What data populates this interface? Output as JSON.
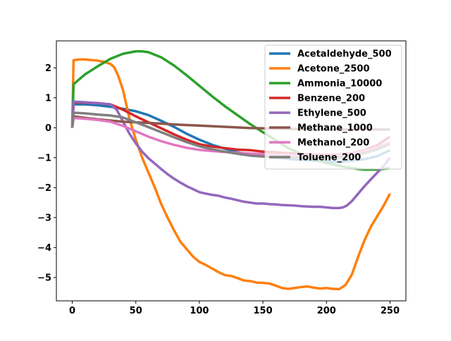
{
  "chart_data": {
    "type": "line",
    "title": "",
    "xlabel": "",
    "ylabel": "",
    "xlim": [
      -12.5,
      262.5
    ],
    "ylim": [
      -5.78,
      2.9
    ],
    "x_ticks": [
      0,
      50,
      100,
      150,
      200,
      250
    ],
    "x_tick_labels": [
      "0",
      "50",
      "100",
      "150",
      "200",
      "250"
    ],
    "y_ticks": [
      2,
      1,
      0,
      -1,
      -2,
      -3,
      -4,
      -5
    ],
    "y_tick_labels": [
      "2",
      "1",
      "0",
      "−1",
      "−2",
      "−3",
      "−4",
      "−5"
    ],
    "grid": false,
    "legend_position": "upper-right",
    "series": [
      {
        "name": "Acetaldehyde_500",
        "color": "#1f77b4",
        "points": [
          [
            0,
            0
          ],
          [
            1,
            0.78
          ],
          [
            10,
            0.78
          ],
          [
            20,
            0.75
          ],
          [
            30,
            0.7
          ],
          [
            40,
            0.63
          ],
          [
            50,
            0.55
          ],
          [
            60,
            0.42
          ],
          [
            70,
            0.23
          ],
          [
            80,
            0.03
          ],
          [
            90,
            -0.2
          ],
          [
            100,
            -0.4
          ],
          [
            110,
            -0.57
          ],
          [
            120,
            -0.7
          ],
          [
            130,
            -0.82
          ],
          [
            140,
            -0.9
          ],
          [
            150,
            -0.95
          ],
          [
            160,
            -1.0
          ],
          [
            170,
            -1.04
          ],
          [
            180,
            -1.07
          ],
          [
            190,
            -1.1
          ],
          [
            200,
            -1.12
          ],
          [
            210,
            -1.15
          ],
          [
            220,
            -1.1
          ],
          [
            230,
            -1.05
          ],
          [
            240,
            -0.95
          ],
          [
            250,
            -0.75
          ]
        ]
      },
      {
        "name": "Acetone_2500",
        "color": "#ff7f0e",
        "points": [
          [
            0,
            0
          ],
          [
            1,
            2.25
          ],
          [
            5,
            2.28
          ],
          [
            10,
            2.28
          ],
          [
            20,
            2.24
          ],
          [
            25,
            2.2
          ],
          [
            30,
            2.13
          ],
          [
            33,
            2.02
          ],
          [
            36,
            1.75
          ],
          [
            40,
            1.25
          ],
          [
            45,
            0.3
          ],
          [
            50,
            -0.4
          ],
          [
            55,
            -1.0
          ],
          [
            60,
            -1.5
          ],
          [
            65,
            -2.0
          ],
          [
            70,
            -2.55
          ],
          [
            75,
            -3.0
          ],
          [
            80,
            -3.42
          ],
          [
            85,
            -3.8
          ],
          [
            90,
            -4.05
          ],
          [
            95,
            -4.3
          ],
          [
            100,
            -4.48
          ],
          [
            105,
            -4.58
          ],
          [
            110,
            -4.7
          ],
          [
            115,
            -4.82
          ],
          [
            120,
            -4.92
          ],
          [
            125,
            -4.95
          ],
          [
            130,
            -5.02
          ],
          [
            135,
            -5.1
          ],
          [
            140,
            -5.12
          ],
          [
            145,
            -5.17
          ],
          [
            150,
            -5.18
          ],
          [
            155,
            -5.2
          ],
          [
            160,
            -5.27
          ],
          [
            165,
            -5.35
          ],
          [
            170,
            -5.38
          ],
          [
            175,
            -5.35
          ],
          [
            180,
            -5.32
          ],
          [
            185,
            -5.3
          ],
          [
            190,
            -5.34
          ],
          [
            195,
            -5.37
          ],
          [
            200,
            -5.35
          ],
          [
            205,
            -5.38
          ],
          [
            210,
            -5.39
          ],
          [
            215,
            -5.25
          ],
          [
            220,
            -4.9
          ],
          [
            225,
            -4.3
          ],
          [
            230,
            -3.75
          ],
          [
            235,
            -3.3
          ],
          [
            240,
            -2.95
          ],
          [
            245,
            -2.6
          ],
          [
            250,
            -2.2
          ]
        ]
      },
      {
        "name": "Ammonia_10000",
        "color": "#2ca02c",
        "points": [
          [
            0,
            0
          ],
          [
            1,
            1.45
          ],
          [
            5,
            1.6
          ],
          [
            10,
            1.78
          ],
          [
            20,
            2.05
          ],
          [
            30,
            2.3
          ],
          [
            40,
            2.47
          ],
          [
            50,
            2.55
          ],
          [
            55,
            2.55
          ],
          [
            60,
            2.52
          ],
          [
            70,
            2.35
          ],
          [
            80,
            2.08
          ],
          [
            90,
            1.75
          ],
          [
            100,
            1.4
          ],
          [
            110,
            1.05
          ],
          [
            120,
            0.72
          ],
          [
            130,
            0.42
          ],
          [
            140,
            0.12
          ],
          [
            150,
            -0.15
          ],
          [
            160,
            -0.42
          ],
          [
            170,
            -0.68
          ],
          [
            180,
            -0.88
          ],
          [
            190,
            -1.05
          ],
          [
            200,
            -1.18
          ],
          [
            210,
            -1.27
          ],
          [
            220,
            -1.35
          ],
          [
            230,
            -1.4
          ],
          [
            240,
            -1.4
          ],
          [
            250,
            -1.35
          ]
        ]
      },
      {
        "name": "Benzene_200",
        "color": "#d62728",
        "points": [
          [
            0,
            0
          ],
          [
            1,
            0.85
          ],
          [
            10,
            0.84
          ],
          [
            20,
            0.82
          ],
          [
            30,
            0.78
          ],
          [
            40,
            0.6
          ],
          [
            50,
            0.38
          ],
          [
            60,
            0.18
          ],
          [
            70,
            -0.02
          ],
          [
            80,
            -0.22
          ],
          [
            90,
            -0.4
          ],
          [
            100,
            -0.55
          ],
          [
            110,
            -0.63
          ],
          [
            120,
            -0.68
          ],
          [
            130,
            -0.73
          ],
          [
            140,
            -0.75
          ],
          [
            150,
            -0.8
          ],
          [
            160,
            -0.82
          ],
          [
            170,
            -0.85
          ],
          [
            180,
            -0.88
          ],
          [
            190,
            -0.9
          ],
          [
            200,
            -0.9
          ],
          [
            210,
            -0.9
          ],
          [
            220,
            -0.85
          ],
          [
            230,
            -0.75
          ],
          [
            240,
            -0.58
          ],
          [
            250,
            -0.3
          ]
        ]
      },
      {
        "name": "Ethylene_500",
        "color": "#9467bd",
        "points": [
          [
            0,
            0
          ],
          [
            1,
            0.87
          ],
          [
            10,
            0.85
          ],
          [
            20,
            0.82
          ],
          [
            30,
            0.78
          ],
          [
            35,
            0.6
          ],
          [
            40,
            0.2
          ],
          [
            45,
            -0.2
          ],
          [
            50,
            -0.52
          ],
          [
            55,
            -0.8
          ],
          [
            60,
            -1.02
          ],
          [
            65,
            -1.2
          ],
          [
            70,
            -1.38
          ],
          [
            75,
            -1.55
          ],
          [
            80,
            -1.7
          ],
          [
            85,
            -1.83
          ],
          [
            90,
            -1.95
          ],
          [
            95,
            -2.05
          ],
          [
            100,
            -2.15
          ],
          [
            105,
            -2.2
          ],
          [
            110,
            -2.24
          ],
          [
            115,
            -2.27
          ],
          [
            120,
            -2.33
          ],
          [
            125,
            -2.37
          ],
          [
            130,
            -2.42
          ],
          [
            135,
            -2.47
          ],
          [
            140,
            -2.5
          ],
          [
            145,
            -2.53
          ],
          [
            150,
            -2.53
          ],
          [
            155,
            -2.55
          ],
          [
            160,
            -2.56
          ],
          [
            165,
            -2.58
          ],
          [
            170,
            -2.59
          ],
          [
            175,
            -2.6
          ],
          [
            180,
            -2.62
          ],
          [
            185,
            -2.63
          ],
          [
            190,
            -2.64
          ],
          [
            195,
            -2.64
          ],
          [
            200,
            -2.66
          ],
          [
            205,
            -2.68
          ],
          [
            210,
            -2.68
          ],
          [
            213,
            -2.66
          ],
          [
            216,
            -2.6
          ],
          [
            220,
            -2.45
          ],
          [
            225,
            -2.2
          ],
          [
            230,
            -1.95
          ],
          [
            235,
            -1.72
          ],
          [
            240,
            -1.5
          ],
          [
            245,
            -1.28
          ],
          [
            250,
            -1.0
          ]
        ]
      },
      {
        "name": "Methane_1000",
        "color": "#8c564b",
        "points": [
          [
            0,
            0
          ],
          [
            1,
            0.38
          ],
          [
            10,
            0.33
          ],
          [
            20,
            0.28
          ],
          [
            30,
            0.24
          ],
          [
            40,
            0.2
          ],
          [
            50,
            0.18
          ],
          [
            60,
            0.16
          ],
          [
            70,
            0.14
          ],
          [
            80,
            0.11
          ],
          [
            90,
            0.09
          ],
          [
            100,
            0.07
          ],
          [
            110,
            0.05
          ],
          [
            120,
            0.03
          ],
          [
            130,
            0.01
          ],
          [
            140,
            -0.01
          ],
          [
            150,
            -0.02
          ],
          [
            160,
            -0.03
          ],
          [
            170,
            -0.04
          ],
          [
            180,
            -0.05
          ],
          [
            190,
            -0.06
          ],
          [
            200,
            -0.06
          ],
          [
            210,
            -0.06
          ],
          [
            220,
            -0.06
          ],
          [
            230,
            -0.06
          ],
          [
            240,
            -0.06
          ],
          [
            250,
            -0.06
          ]
        ]
      },
      {
        "name": "Methanol_200",
        "color": "#e377c2",
        "points": [
          [
            0,
            0
          ],
          [
            1,
            0.32
          ],
          [
            10,
            0.3
          ],
          [
            20,
            0.26
          ],
          [
            30,
            0.2
          ],
          [
            40,
            0.06
          ],
          [
            50,
            -0.12
          ],
          [
            60,
            -0.3
          ],
          [
            70,
            -0.45
          ],
          [
            80,
            -0.57
          ],
          [
            90,
            -0.67
          ],
          [
            100,
            -0.74
          ],
          [
            110,
            -0.78
          ],
          [
            120,
            -0.81
          ],
          [
            130,
            -0.84
          ],
          [
            140,
            -0.86
          ],
          [
            150,
            -0.88
          ],
          [
            160,
            -0.9
          ],
          [
            170,
            -0.91
          ],
          [
            180,
            -0.92
          ],
          [
            190,
            -0.93
          ],
          [
            200,
            -0.93
          ],
          [
            210,
            -0.93
          ],
          [
            220,
            -0.88
          ],
          [
            230,
            -0.78
          ],
          [
            240,
            -0.65
          ],
          [
            250,
            -0.5
          ]
        ]
      },
      {
        "name": "Toluene_200",
        "color": "#7f7f7f",
        "points": [
          [
            0,
            0
          ],
          [
            1,
            0.5
          ],
          [
            10,
            0.48
          ],
          [
            20,
            0.44
          ],
          [
            30,
            0.41
          ],
          [
            40,
            0.34
          ],
          [
            50,
            0.18
          ],
          [
            60,
            0.02
          ],
          [
            70,
            -0.15
          ],
          [
            80,
            -0.32
          ],
          [
            90,
            -0.48
          ],
          [
            100,
            -0.62
          ],
          [
            110,
            -0.72
          ],
          [
            120,
            -0.8
          ],
          [
            130,
            -0.87
          ],
          [
            140,
            -0.93
          ],
          [
            150,
            -0.96
          ],
          [
            160,
            -0.98
          ],
          [
            170,
            -1.0
          ],
          [
            180,
            -1.0
          ],
          [
            190,
            -1.0
          ],
          [
            200,
            -1.0
          ],
          [
            210,
            -1.0
          ],
          [
            220,
            -0.95
          ],
          [
            230,
            -0.85
          ],
          [
            240,
            -0.72
          ],
          [
            250,
            -0.55
          ]
        ]
      }
    ]
  }
}
